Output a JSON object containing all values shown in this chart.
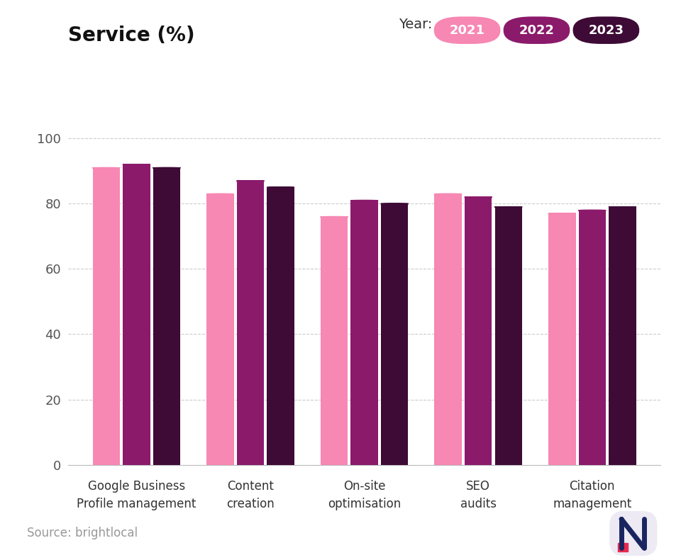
{
  "categories": [
    "Google Business\nProfile management",
    "Content\ncreation",
    "On-site\noptimisation",
    "SEO\naudits",
    "Citation\nmanagement"
  ],
  "values_2021": [
    91,
    83,
    76,
    83,
    77
  ],
  "values_2022": [
    92,
    87,
    81,
    82,
    78
  ],
  "values_2023": [
    91,
    85,
    80,
    79,
    79
  ],
  "color_2021": "#F787B3",
  "color_2022": "#8B1A6B",
  "color_2023": "#3D0B35",
  "title": "Service (%)",
  "ylim": [
    0,
    108
  ],
  "yticks": [
    0,
    20,
    40,
    60,
    80,
    100
  ],
  "background_color": "#ffffff",
  "source_text": "Source: brightlocal",
  "legend_label_2021": "2021",
  "legend_label_2022": "2022",
  "legend_label_2023": "2023",
  "year_label": "Year:",
  "title_underline_color": "#E8294E",
  "footer_bg_color": "#EDEAF4"
}
